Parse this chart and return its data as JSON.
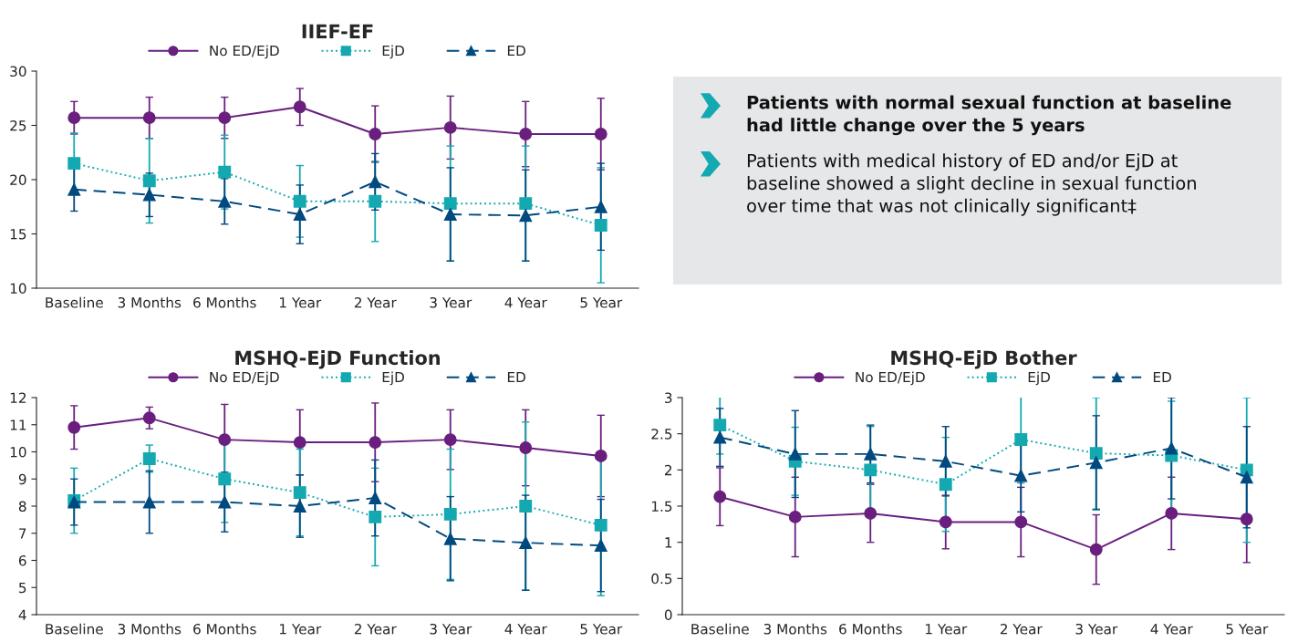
{
  "chart_data": [
    {
      "type": "line",
      "title": "IIEF-EF",
      "categories": [
        "Baseline",
        "3 Months",
        "6 Months",
        "1 Year",
        "2 Year",
        "3 Year",
        "4 Year",
        "5 Year"
      ],
      "ylim": [
        10,
        30
      ],
      "yticks": [
        10,
        15,
        20,
        25,
        30
      ],
      "grid": false,
      "legend": "top",
      "series": [
        {
          "name": "No ED/EjD",
          "color": "#6a1f7f",
          "marker": "circle",
          "line_style": "solid",
          "values": [
            25.7,
            25.7,
            25.7,
            26.7,
            24.2,
            24.8,
            24.2,
            24.2
          ],
          "errors": [
            1.5,
            1.9,
            1.9,
            1.7,
            2.6,
            2.9,
            3.0,
            3.3
          ]
        },
        {
          "name": "EjD",
          "color": "#14a9b1",
          "marker": "square",
          "line_style": "dotted",
          "values": [
            21.5,
            19.9,
            20.7,
            18.0,
            18.0,
            17.8,
            17.8,
            15.8
          ],
          "errors": [
            2.8,
            3.9,
            3.4,
            3.3,
            3.7,
            5.3,
            5.3,
            5.3
          ]
        },
        {
          "name": "ED",
          "color": "#004a80",
          "marker": "triangle",
          "line_style": "dashed",
          "values": [
            19.1,
            18.6,
            18.0,
            16.8,
            19.8,
            16.8,
            16.7,
            17.5
          ],
          "errors": [
            2.0,
            2.0,
            2.1,
            2.7,
            2.6,
            4.3,
            4.2,
            4.0
          ]
        }
      ]
    },
    {
      "type": "other",
      "annotations": [
        "Patients with normal sexual function at baseline\nhad little change over the 5 years",
        "Patients with medical history of ED and/or EjD at\nbaseline showed a slight decline in sexual function\nover time that was not clinically significant‡"
      ]
    },
    {
      "type": "line",
      "title": "MSHQ-EjD Function",
      "categories": [
        "Baseline",
        "3 Months",
        "6 Months",
        "1 Year",
        "2 Year",
        "3 Year",
        "4 Year",
        "5 Year"
      ],
      "ylim": [
        4,
        12
      ],
      "yticks": [
        4,
        5,
        6,
        7,
        8,
        9,
        10,
        11,
        12
      ],
      "grid": false,
      "legend": "top",
      "series": [
        {
          "name": "No ED/EjD",
          "color": "#6a1f7f",
          "marker": "circle",
          "line_style": "solid",
          "values": [
            10.9,
            11.25,
            10.45,
            10.35,
            10.35,
            10.45,
            10.15,
            9.85
          ],
          "errors": [
            0.8,
            0.4,
            1.3,
            1.2,
            1.45,
            1.1,
            1.4,
            1.5
          ]
        },
        {
          "name": "EjD",
          "color": "#14a9b1",
          "marker": "square",
          "line_style": "dotted",
          "values": [
            8.2,
            9.75,
            9.0,
            8.5,
            7.6,
            7.7,
            8.0,
            7.3
          ],
          "errors": [
            1.2,
            0.5,
            1.6,
            1.6,
            1.8,
            2.4,
            3.1,
            2.6
          ]
        },
        {
          "name": "ED",
          "color": "#004a80",
          "marker": "triangle",
          "line_style": "dashed",
          "values": [
            8.15,
            8.15,
            8.15,
            8.0,
            8.3,
            6.8,
            6.65,
            6.55
          ],
          "errors": [
            0.85,
            1.15,
            1.1,
            1.15,
            1.4,
            1.55,
            1.75,
            1.7
          ]
        }
      ]
    },
    {
      "type": "line",
      "title": "MSHQ-EjD Bother",
      "categories": [
        "Baseline",
        "3 Months",
        "6 Months",
        "1 Year",
        "2 Year",
        "3 Year",
        "4 Year",
        "5 Year"
      ],
      "ylim": [
        0,
        3
      ],
      "yticks": [
        0,
        0.5,
        1,
        1.5,
        2,
        2.5,
        3
      ],
      "grid": false,
      "legend": "top",
      "series": [
        {
          "name": "No ED/EjD",
          "color": "#6a1f7f",
          "marker": "circle",
          "line_style": "solid",
          "values": [
            1.63,
            1.35,
            1.4,
            1.28,
            1.28,
            0.9,
            1.4,
            1.32
          ],
          "errors": [
            0.4,
            0.55,
            0.4,
            0.37,
            0.48,
            0.48,
            0.5,
            0.6
          ]
        },
        {
          "name": "EjD",
          "color": "#14a9b1",
          "marker": "square",
          "line_style": "dotted",
          "values": [
            2.62,
            2.12,
            2.0,
            1.8,
            2.42,
            2.23,
            2.2,
            2.0
          ],
          "errors": [
            0.4,
            0.47,
            0.6,
            0.65,
            0.6,
            0.77,
            0.75,
            1.0
          ]
        },
        {
          "name": "ED",
          "color": "#004a80",
          "marker": "triangle",
          "line_style": "dashed",
          "values": [
            2.45,
            2.22,
            2.22,
            2.12,
            1.92,
            2.1,
            2.3,
            1.9
          ],
          "errors": [
            0.4,
            0.6,
            0.4,
            0.48,
            0.5,
            0.65,
            0.7,
            0.7
          ]
        }
      ]
    }
  ]
}
